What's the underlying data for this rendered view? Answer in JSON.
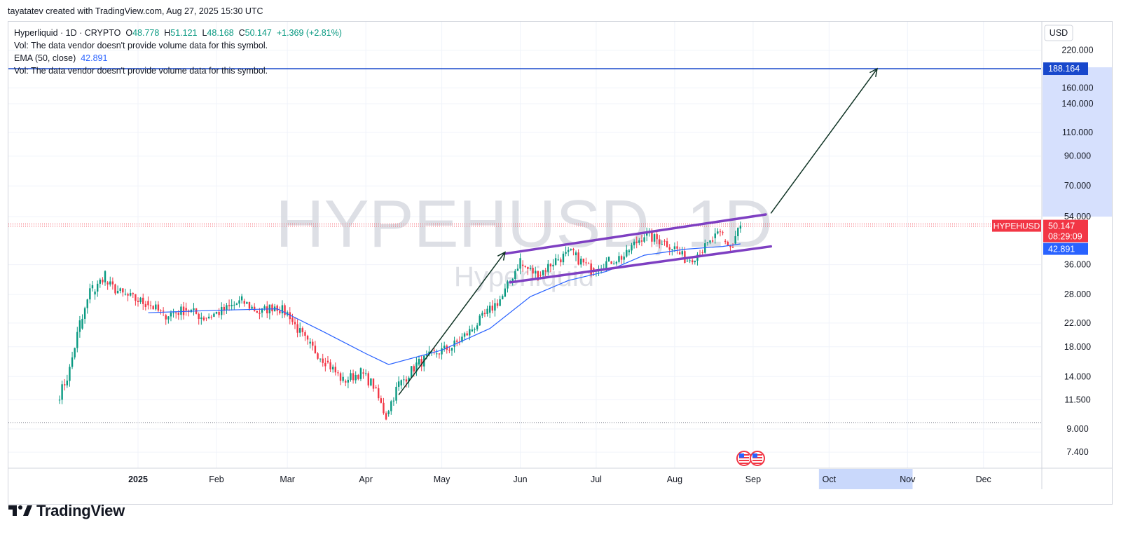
{
  "header": {
    "credit": "tayatatev created with TradingView.com, Aug 27, 2025 15:30 UTC"
  },
  "legend": {
    "symbol": "Hyperliquid · 1D · CRYPTO",
    "o_label": "O",
    "o": "48.778",
    "h_label": "H",
    "h": "51.121",
    "l_label": "L",
    "l": "48.168",
    "c_label": "C",
    "c": "50.147",
    "change": "+1.369 (+2.81%)",
    "vol_note": "Vol: The data vendor doesn't provide volume data for this symbol.",
    "ema_label": "EMA (50, close)",
    "ema_value": "42.891",
    "vol_note2": "Vol: The data vendor doesn't provide volume data for this symbol."
  },
  "watermark": {
    "ticker": "HYPEHUSD, 1D",
    "name": "Hyperliquid"
  },
  "currency": "USD",
  "brand": "TradingView",
  "colors": {
    "up": "#089981",
    "down": "#f23645",
    "ema": "#2962ff",
    "channel": "#7e3fc2",
    "target_line": "#1848cc",
    "arrow": "#0f3324"
  },
  "chart_data": {
    "type": "candlestick",
    "y_scale": "log",
    "y_ticks": [
      "220.000",
      "160.000",
      "140.000",
      "110.000",
      "90.000",
      "70.000",
      "54.000",
      "36.000",
      "28.000",
      "22.000",
      "18.000",
      "14.000",
      "11.500",
      "9.000",
      "7.400"
    ],
    "x_ticks": [
      "2025",
      "Feb",
      "Mar",
      "Apr",
      "May",
      "Jun",
      "Jul",
      "Aug",
      "Sep",
      "Oct",
      "Nov",
      "Dec"
    ],
    "last_price": {
      "label": "HYPEHUSD",
      "value": "50.147",
      "countdown": "08:29:09"
    },
    "ema_badge": "42.891",
    "target_badge": "188.164",
    "ohlc": [
      [
        "2024-12-01",
        11.5,
        13.9
      ],
      [
        "2024-12-05",
        13.5,
        22.0
      ],
      [
        "2024-12-10",
        21.0,
        31.0
      ],
      [
        "2024-12-15",
        28.0,
        33.5
      ],
      [
        "2024-12-20",
        31.0,
        28.0
      ],
      [
        "2024-12-27",
        28.0,
        26.0
      ],
      [
        "2025-01-05",
        26.5,
        23.5
      ],
      [
        "2025-01-12",
        23.5,
        24.5
      ],
      [
        "2025-01-20",
        25.0,
        23.0
      ],
      [
        "2025-01-28",
        23.0,
        24.5
      ],
      [
        "2025-02-05",
        24.5,
        26.5
      ],
      [
        "2025-02-12",
        26.5,
        24.0
      ],
      [
        "2025-02-19",
        24.0,
        25.5
      ],
      [
        "2025-02-25",
        25.5,
        23.5
      ],
      [
        "2025-03-03",
        23.0,
        18.5
      ],
      [
        "2025-03-10",
        18.5,
        16.0
      ],
      [
        "2025-03-17",
        16.0,
        13.5
      ],
      [
        "2025-03-24",
        13.5,
        14.5
      ],
      [
        "2025-03-31",
        14.5,
        13.0
      ],
      [
        "2025-04-05",
        12.8,
        10.0
      ],
      [
        "2025-04-10",
        10.2,
        13.2
      ],
      [
        "2025-04-15",
        13.0,
        15.5
      ],
      [
        "2025-04-22",
        15.5,
        17.0
      ],
      [
        "2025-04-29",
        17.0,
        18.0
      ],
      [
        "2025-05-06",
        18.0,
        20.5
      ],
      [
        "2025-05-13",
        20.5,
        24.0
      ],
      [
        "2025-05-20",
        24.0,
        27.5
      ],
      [
        "2025-05-26",
        27.5,
        37.5
      ],
      [
        "2025-06-02",
        36.0,
        33.0
      ],
      [
        "2025-06-09",
        33.0,
        37.5
      ],
      [
        "2025-06-16",
        37.5,
        40.0
      ],
      [
        "2025-06-23",
        39.0,
        34.5
      ],
      [
        "2025-06-30",
        35.0,
        37.0
      ],
      [
        "2025-07-07",
        37.0,
        39.0
      ],
      [
        "2025-07-14",
        40.0,
        46.5
      ],
      [
        "2025-07-21",
        46.0,
        44.0
      ],
      [
        "2025-07-28",
        44.0,
        41.0
      ],
      [
        "2025-08-03",
        40.0,
        38.0
      ],
      [
        "2025-08-06",
        37.0,
        40.0
      ],
      [
        "2025-08-12",
        40.0,
        44.0
      ],
      [
        "2025-08-17",
        45.0,
        46.5
      ],
      [
        "2025-08-21",
        44.0,
        41.5
      ],
      [
        "2025-08-25",
        43.0,
        48.8
      ],
      [
        "2025-08-27",
        48.8,
        50.1
      ]
    ],
    "ema50": [
      [
        "2025-01-05",
        24.0
      ],
      [
        "2025-02-01",
        24.5
      ],
      [
        "2025-02-25",
        24.8
      ],
      [
        "2025-03-15",
        20.5
      ],
      [
        "2025-04-01",
        17.0
      ],
      [
        "2025-04-10",
        15.5
      ],
      [
        "2025-05-01",
        17.5
      ],
      [
        "2025-05-20",
        21.0
      ],
      [
        "2025-06-05",
        27.5
      ],
      [
        "2025-06-20",
        31.5
      ],
      [
        "2025-07-05",
        34.0
      ],
      [
        "2025-07-20",
        39.0
      ],
      [
        "2025-08-05",
        41.0
      ],
      [
        "2025-08-20",
        42.0
      ],
      [
        "2025-08-27",
        42.891
      ]
    ],
    "channel_upper": [
      [
        "2025-05-26",
        39.5
      ],
      [
        "2025-09-06",
        55.0
      ]
    ],
    "channel_lower": [
      [
        "2025-05-28",
        31.0
      ],
      [
        "2025-09-08",
        42.0
      ]
    ],
    "arrows": [
      [
        [
          "2025-04-14",
          12.0
        ],
        [
          "2025-05-26",
          40.0
        ]
      ],
      [
        [
          "2025-09-08",
          55.5
        ],
        [
          "2025-10-20",
          188.164
        ]
      ]
    ],
    "h_lines": [
      188.164,
      50.147,
      9.5
    ]
  }
}
